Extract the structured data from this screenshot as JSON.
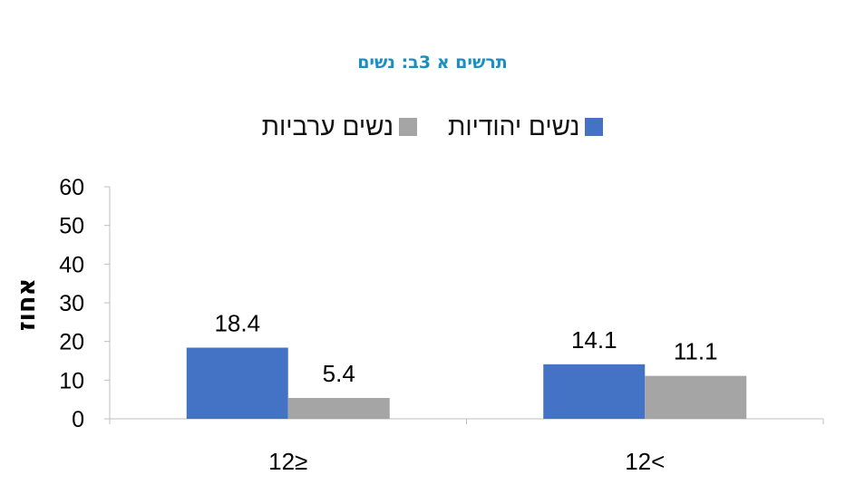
{
  "chart_data": {
    "type": "bar",
    "title": "תרשים א 3ב: נשים",
    "ylabel": "אחוז",
    "xlabel": "",
    "categories": [
      "12≥",
      "12<"
    ],
    "series": [
      {
        "name": "נשים יהודיות",
        "values": [
          18.4,
          14.1
        ],
        "color": "#4472c4"
      },
      {
        "name": "נשים ערביות",
        "values": [
          5.4,
          11.1
        ],
        "color": "#a5a5a5"
      }
    ],
    "ylim": [
      0,
      60
    ],
    "yticks": [
      "0",
      "10",
      "20",
      "30",
      "40",
      "50",
      "60"
    ],
    "legend_position": "top",
    "grid": false
  }
}
